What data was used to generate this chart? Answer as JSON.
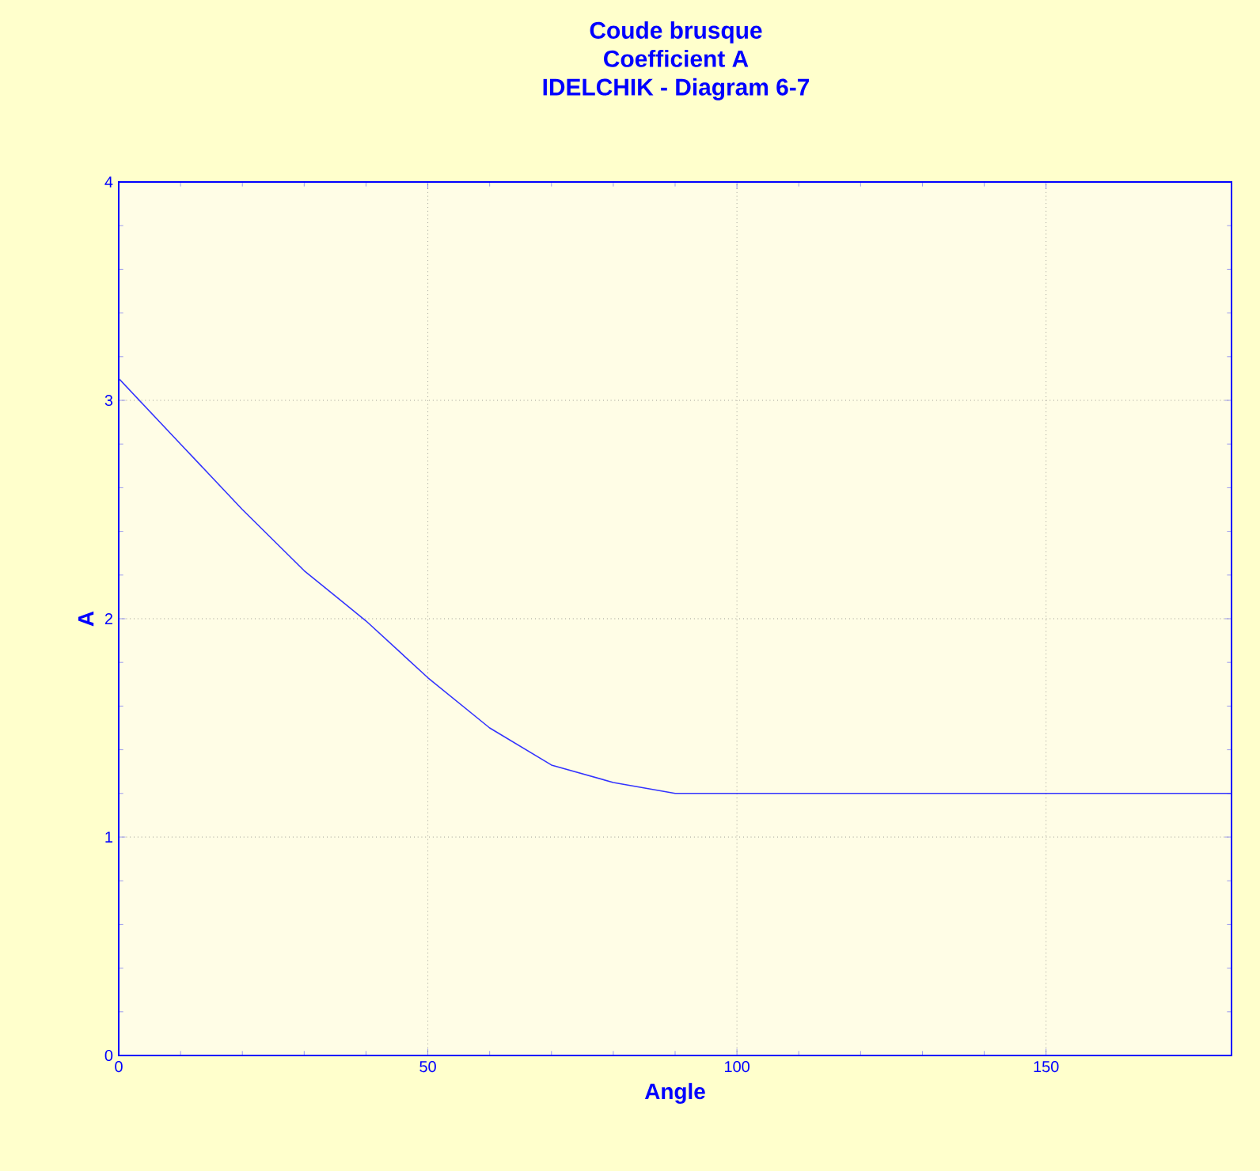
{
  "chart_data": {
    "type": "line",
    "title": "Coude brusque",
    "subtitle": "Coefficient A",
    "annotations": [
      "IDELCHIK - Diagram 6-7"
    ],
    "xlabel": "Angle",
    "ylabel": "A",
    "x": [
      0,
      10,
      20,
      30,
      40,
      50,
      60,
      70,
      80,
      90,
      180
    ],
    "series": [
      {
        "color": "#3333ff",
        "values": [
          3.1,
          2.8,
          2.5,
          2.22,
          1.99,
          1.73,
          1.5,
          1.33,
          1.25,
          1.2,
          1.2
        ]
      }
    ],
    "xlim": [
      0,
      180
    ],
    "ylim": [
      0,
      4
    ],
    "xticks": [
      0,
      50,
      100,
      150
    ],
    "yticks": [
      0,
      1,
      2,
      3,
      4
    ],
    "grid": true
  }
}
